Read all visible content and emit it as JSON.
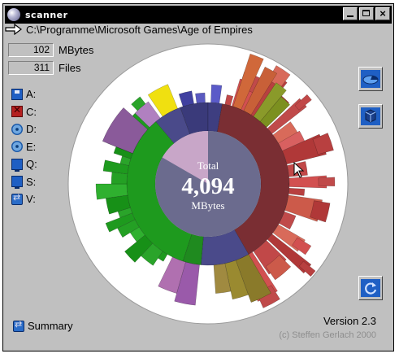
{
  "window": {
    "title": "scanner"
  },
  "path": {
    "text": "C:\\Programme\\Microsoft Games\\Age of Empires"
  },
  "stats": [
    {
      "value": "102",
      "label": "MBytes"
    },
    {
      "value": "311",
      "label": "Files"
    }
  ],
  "drives": [
    {
      "letter": "A:",
      "icon": "floppy-icon"
    },
    {
      "letter": "C:",
      "icon": "harddisk-icon"
    },
    {
      "letter": "D:",
      "icon": "cdrom-icon"
    },
    {
      "letter": "E:",
      "icon": "cdrom-icon"
    },
    {
      "letter": "Q:",
      "icon": "network-drive-icon"
    },
    {
      "letter": "S:",
      "icon": "network-drive-icon"
    },
    {
      "letter": "V:",
      "icon": "network-drive-icon"
    }
  ],
  "center": {
    "caption": "Total",
    "value": "4,094",
    "unit": "MBytes"
  },
  "summary": {
    "label": "Summary"
  },
  "version": "Version 2.3",
  "copyright": "(c) Steffen Gerlach 2000",
  "colors": {
    "titlebar": "#000000",
    "face": "#c0c0c0",
    "center": "#6b6b8e",
    "accent": "#1f5fc4"
  }
}
